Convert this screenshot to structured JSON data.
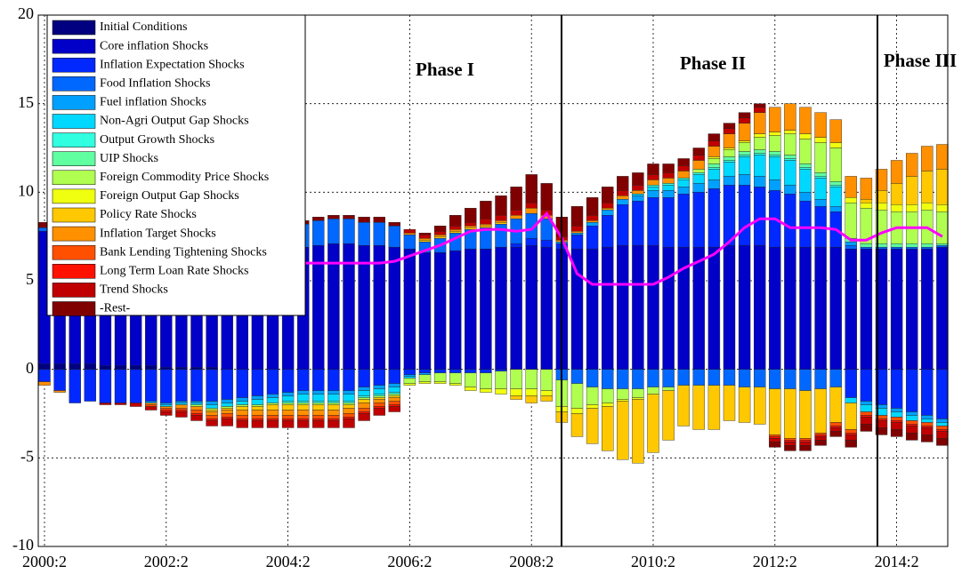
{
  "chart_data": {
    "type": "bar",
    "stacked": true,
    "categories": [
      "2000:2",
      null,
      null,
      null,
      null,
      null,
      null,
      null,
      "2002:2",
      null,
      null,
      null,
      null,
      null,
      null,
      null,
      "2004:2",
      null,
      null,
      null,
      null,
      null,
      null,
      null,
      "2006:2",
      null,
      null,
      null,
      null,
      null,
      null,
      null,
      "2008:2",
      null,
      null,
      null,
      null,
      null,
      null,
      null,
      "2010:2",
      null,
      null,
      null,
      null,
      null,
      null,
      null,
      "2012:2",
      null,
      null,
      null,
      null,
      null,
      null,
      null,
      "2014:2",
      null,
      null,
      null
    ],
    "ylim": [
      -10,
      20
    ],
    "yticks": [
      -10,
      -5,
      0,
      5,
      10,
      15,
      20
    ],
    "grid": true,
    "legend": "upper left",
    "annotations": [
      "Phase I",
      "Phase II",
      "Phase III"
    ],
    "series": [
      {
        "name": "Initial Conditions",
        "color": "#000080",
        "values": [
          0.3,
          0.3,
          0.3,
          0.3,
          0.2,
          0.2,
          0.2,
          0.2,
          0.1,
          0.1,
          0.1,
          0.1,
          0,
          0,
          0,
          0,
          0,
          0,
          0,
          0,
          0,
          0,
          0,
          0,
          0,
          0,
          0,
          0,
          0,
          0,
          0,
          0,
          0,
          0,
          0,
          0,
          0,
          0,
          0,
          0,
          0,
          0,
          0,
          0,
          0,
          0,
          0,
          0,
          0,
          0,
          0,
          0,
          0,
          0,
          0,
          0,
          0,
          0,
          0,
          0
        ]
      },
      {
        "name": "Core inflation Shocks",
        "color": "#0000c8",
        "values": [
          7.5,
          7.3,
          7.2,
          7.0,
          6.9,
          6.8,
          6.8,
          6.7,
          6.7,
          6.7,
          6.8,
          6.9,
          7.0,
          7.0,
          7.1,
          7.0,
          6.9,
          6.9,
          7.0,
          7.1,
          7.1,
          7.0,
          7.0,
          6.9,
          6.8,
          6.6,
          6.6,
          6.7,
          6.8,
          6.8,
          6.9,
          6.9,
          7.0,
          6.9,
          6.8,
          6.8,
          6.8,
          6.9,
          7.0,
          7.0,
          7.0,
          6.9,
          6.9,
          6.9,
          6.9,
          7.0,
          7.0,
          7.0,
          6.9,
          6.9,
          6.9,
          6.9,
          6.9,
          6.8,
          6.8,
          6.8,
          6.8,
          6.8,
          6.8,
          6.9
        ]
      },
      {
        "name": "Inflation Expectation Shocks",
        "color": "#0028ff",
        "values": [
          -0.7,
          -1.2,
          -1.9,
          -1.8,
          -1.9,
          -1.9,
          -1.9,
          -1.8,
          -1.9,
          -1.8,
          -1.8,
          -1.8,
          -1.7,
          -1.6,
          -1.5,
          -1.4,
          -1.3,
          -1.2,
          -1.2,
          -1.2,
          -1.2,
          -1.0,
          -0.9,
          -0.8,
          -0.3,
          -0.2,
          -0.2,
          -0.2,
          -0.2,
          -0.2,
          -0.1,
          0.2,
          0.4,
          0.4,
          0.3,
          0.8,
          1.3,
          1.8,
          2.3,
          2.5,
          2.7,
          2.8,
          3.0,
          3.1,
          3.3,
          3.4,
          3.4,
          3.3,
          3.2,
          3.0,
          2.6,
          2.3,
          2.0,
          -1.6,
          -1.8,
          -2.0,
          -2.2,
          -2.4,
          -2.6,
          -2.8
        ]
      },
      {
        "name": "Food Inflation Shocks",
        "color": "#0068ff",
        "values": [
          0.2,
          0.3,
          0.3,
          0.3,
          0.3,
          0.3,
          0.4,
          0.4,
          0.5,
          0.6,
          0.7,
          0.8,
          0.9,
          1.0,
          1.1,
          1.2,
          1.2,
          1.3,
          1.4,
          1.4,
          1.4,
          1.3,
          1.3,
          1.2,
          0.8,
          0.6,
          0.8,
          1.0,
          1.1,
          1.2,
          1.3,
          1.4,
          1.4,
          1.2,
          -0.6,
          -0.8,
          -1.0,
          -1.1,
          -1.1,
          -1.1,
          -1.0,
          -1.0,
          -0.9,
          -0.9,
          -0.9,
          -0.9,
          -1.0,
          -1.0,
          -1.1,
          -1.1,
          -1.2,
          -1.1,
          -1.0,
          0.2,
          0.1,
          0.1,
          0.1,
          0.1,
          0.1,
          0.1
        ]
      },
      {
        "name": "Fuel inflation Shocks",
        "color": "#00a0ff",
        "values": [
          0,
          0,
          0,
          0,
          0,
          0,
          0,
          -0.1,
          -0.1,
          -0.1,
          -0.1,
          -0.2,
          -0.2,
          -0.2,
          -0.2,
          -0.2,
          -0.2,
          -0.2,
          -0.2,
          -0.2,
          -0.2,
          -0.2,
          -0.2,
          -0.2,
          -0.1,
          -0.1,
          0,
          0,
          0,
          0,
          0,
          0,
          0,
          0,
          0.1,
          0.1,
          0.2,
          0.3,
          0.3,
          0.3,
          0.4,
          0.4,
          0.4,
          0.5,
          0.5,
          0.5,
          0.6,
          0.6,
          0.6,
          0.5,
          0.5,
          0.4,
          0.3,
          0.2,
          -0.2,
          -0.2,
          -0.2,
          -0.2,
          -0.2,
          -0.2
        ]
      },
      {
        "name": "Non-Agri Output Gap Shocks",
        "color": "#00d8ff",
        "values": [
          0,
          0,
          0,
          0,
          0,
          0,
          0,
          0,
          -0.1,
          -0.1,
          -0.1,
          -0.2,
          -0.2,
          -0.2,
          -0.3,
          -0.3,
          -0.3,
          -0.4,
          -0.4,
          -0.4,
          -0.4,
          -0.3,
          -0.3,
          -0.3,
          -0.1,
          0,
          0,
          0,
          0,
          0,
          0,
          0,
          0,
          0,
          0,
          0,
          0,
          0,
          0,
          0.1,
          0.2,
          0.3,
          0.4,
          0.5,
          0.6,
          0.8,
          1.0,
          1.2,
          1.3,
          1.4,
          1.3,
          1.2,
          1.1,
          -0.3,
          -0.4,
          -0.4,
          -0.3,
          -0.3,
          -0.2,
          -0.2
        ]
      },
      {
        "name": "Output Growth Shocks",
        "color": "#30ffe0",
        "values": [
          0,
          0,
          0,
          0,
          0,
          0,
          0,
          0,
          0,
          0,
          0,
          0,
          0,
          0,
          0,
          0,
          -0.1,
          -0.1,
          -0.1,
          -0.1,
          -0.1,
          -0.1,
          -0.1,
          -0.1,
          0,
          0,
          0,
          0,
          0,
          0,
          0,
          0,
          0,
          0,
          0,
          0,
          0,
          0,
          0,
          0,
          0.1,
          0.1,
          0.1,
          0.1,
          0.1,
          0.1,
          0.1,
          0.1,
          0.1,
          0.1,
          0.1,
          0.1,
          0.1,
          0,
          0,
          0,
          0,
          0,
          0,
          0
        ]
      },
      {
        "name": "UIP Shocks",
        "color": "#60ffa0",
        "values": [
          0,
          0,
          0,
          0,
          0,
          0,
          0,
          0,
          0,
          0,
          0,
          0,
          0,
          0,
          0,
          0,
          0,
          0,
          0,
          0,
          0,
          0,
          0,
          0,
          0,
          0,
          0,
          0,
          0,
          0,
          0,
          0,
          0,
          0,
          0,
          0,
          0,
          0,
          0,
          0,
          0,
          0,
          0,
          0,
          0.2,
          0.2,
          0.2,
          0.2,
          0.2,
          0.2,
          0.2,
          0.2,
          0.2,
          0.2,
          0.2,
          0.2,
          0.2,
          0.2,
          0.2,
          0.1
        ]
      },
      {
        "name": "Foreign Commodity Price Shocks",
        "color": "#b0ff50",
        "values": [
          0,
          0,
          0,
          0,
          0,
          0,
          0,
          0,
          0,
          0,
          -0.1,
          -0.1,
          -0.1,
          -0.1,
          -0.1,
          -0.1,
          -0.1,
          -0.1,
          -0.1,
          -0.1,
          -0.1,
          -0.1,
          -0.1,
          -0.1,
          -0.3,
          -0.4,
          -0.5,
          -0.6,
          -0.8,
          -0.9,
          -1.0,
          -1.1,
          -1.1,
          -1.2,
          -1.5,
          -1.4,
          -1.0,
          -0.8,
          -0.6,
          -0.5,
          -0.4,
          -0.2,
          0,
          0.2,
          0.3,
          0.4,
          0.5,
          0.7,
          0.9,
          1.2,
          1.4,
          1.7,
          1.9,
          2.0,
          2.0,
          1.9,
          1.8,
          1.8,
          1.9,
          1.8
        ]
      },
      {
        "name": "Foreign Output Gap Shocks",
        "color": "#f0ff10",
        "values": [
          0,
          0,
          0,
          0,
          0,
          0,
          0,
          0,
          0,
          0,
          0,
          0,
          0,
          0,
          0,
          0,
          0,
          0,
          0,
          0,
          0,
          0,
          0,
          0,
          -0.1,
          -0.1,
          -0.1,
          -0.1,
          -0.2,
          -0.2,
          -0.3,
          -0.4,
          -0.4,
          -0.3,
          -0.3,
          -0.3,
          -0.2,
          -0.2,
          -0.1,
          -0.1,
          0,
          0,
          0,
          0,
          0.1,
          0.1,
          0.1,
          0.2,
          0.2,
          0.2,
          0.3,
          0.3,
          0.3,
          0.3,
          0.3,
          0.4,
          0.4,
          0.4,
          0.4,
          0.4
        ]
      },
      {
        "name": "Policy Rate Shocks",
        "color": "#ffc800",
        "values": [
          0,
          0,
          0,
          0,
          0,
          0,
          0,
          0,
          0,
          0,
          0,
          -0.1,
          -0.1,
          -0.2,
          -0.2,
          -0.3,
          -0.3,
          -0.3,
          -0.3,
          -0.3,
          -0.2,
          -0.2,
          -0.1,
          -0.1,
          0,
          0.1,
          0.1,
          0.1,
          0.1,
          0.1,
          0.1,
          -0.2,
          -0.4,
          -0.3,
          -0.6,
          -1.3,
          -2.0,
          -2.5,
          -3.3,
          -3.6,
          -3.3,
          -2.8,
          -2.3,
          -2.5,
          -2.5,
          -2.0,
          -2.0,
          -2.1,
          -2.6,
          -2.8,
          -2.7,
          -2.5,
          -2.0,
          -1.5,
          0.2,
          0.7,
          1.2,
          1.6,
          1.8,
          2.0
        ]
      },
      {
        "name": "Inflation Target Shocks",
        "color": "#ff9000",
        "values": [
          -0.2,
          -0.1,
          0,
          0,
          0,
          0,
          0,
          -0.1,
          -0.1,
          -0.2,
          -0.2,
          -0.2,
          -0.2,
          -0.3,
          -0.3,
          -0.3,
          -0.3,
          -0.3,
          -0.3,
          -0.3,
          -0.3,
          -0.3,
          -0.2,
          -0.2,
          0.1,
          0.1,
          0.1,
          0.1,
          0.1,
          0.1,
          0.1,
          0.2,
          0.3,
          0.2,
          0.1,
          0.1,
          0.1,
          0.1,
          0.2,
          0.2,
          0.3,
          0.3,
          0.4,
          0.5,
          0.6,
          0.8,
          1.0,
          1.2,
          1.4,
          1.5,
          1.5,
          1.4,
          1.3,
          1.2,
          1.2,
          1.2,
          1.3,
          1.3,
          1.4,
          1.4
        ]
      },
      {
        "name": "Bank Lending Tightening Shocks",
        "color": "#ff5000",
        "values": [
          0,
          0,
          0,
          0,
          0,
          0,
          0,
          -0.1,
          -0.1,
          -0.1,
          -0.2,
          -0.2,
          -0.2,
          -0.2,
          -0.2,
          -0.2,
          -0.2,
          -0.2,
          -0.2,
          -0.2,
          -0.2,
          -0.2,
          -0.2,
          -0.2,
          0,
          0,
          0,
          0,
          0,
          0,
          0,
          0,
          0,
          0,
          0,
          0,
          0,
          0,
          0,
          0,
          0,
          0,
          0,
          0,
          0,
          0,
          0,
          0,
          -0.1,
          -0.1,
          -0.1,
          -0.1,
          -0.2,
          -0.2,
          -0.2,
          -0.2,
          -0.2,
          -0.2,
          -0.2,
          -0.2
        ]
      },
      {
        "name": "Long Term Loan Rate Shocks",
        "color": "#ff1000",
        "values": [
          0,
          0,
          0,
          0,
          0,
          0,
          0,
          0,
          -0.1,
          -0.1,
          -0.1,
          -0.1,
          -0.1,
          -0.1,
          -0.1,
          -0.1,
          -0.1,
          -0.1,
          -0.1,
          -0.1,
          -0.1,
          -0.1,
          -0.1,
          -0.1,
          0,
          0,
          0,
          0,
          0,
          0,
          0,
          0,
          0,
          0,
          0,
          0,
          0,
          0,
          0,
          0,
          0,
          0,
          0,
          0,
          0,
          0,
          0,
          0,
          -0.1,
          -0.1,
          -0.1,
          -0.1,
          -0.1,
          -0.1,
          -0.1,
          -0.1,
          -0.1,
          -0.1,
          -0.1,
          -0.1
        ]
      },
      {
        "name": "Trend Shocks",
        "color": "#c00000",
        "values": [
          0,
          0,
          0,
          0,
          -0.1,
          -0.1,
          -0.2,
          -0.2,
          -0.2,
          -0.3,
          -0.3,
          -0.3,
          -0.4,
          -0.4,
          -0.4,
          -0.4,
          -0.4,
          -0.4,
          -0.4,
          -0.4,
          -0.5,
          -0.4,
          -0.4,
          -0.3,
          0.2,
          0.2,
          0.2,
          0.2,
          0.2,
          0.3,
          0.3,
          0.3,
          0.3,
          0.3,
          0.2,
          0.3,
          0.3,
          0.3,
          0.3,
          0.3,
          0.3,
          0.3,
          0.3,
          0.3,
          0.3,
          0.3,
          0.3,
          0.3,
          -0.2,
          -0.2,
          -0.2,
          -0.2,
          -0.2,
          -0.3,
          -0.4,
          -0.4,
          -0.4,
          -0.4,
          -0.4,
          -0.4
        ]
      },
      {
        "name": "-Rest-",
        "color": "#800000",
        "values": [
          0.3,
          0.4,
          0.4,
          0.4,
          0.5,
          0.5,
          0.5,
          0.6,
          0.6,
          0.6,
          0.6,
          0.6,
          0.6,
          0.6,
          0.5,
          0.5,
          0.5,
          0.2,
          0.2,
          0.2,
          0.2,
          0.3,
          0.3,
          0.2,
          0,
          0.1,
          0.3,
          0.6,
          0.8,
          1.0,
          1.1,
          1.3,
          1.6,
          1.5,
          1.1,
          1.1,
          1.0,
          0.9,
          0.8,
          0.7,
          0.6,
          0.5,
          0.4,
          0.4,
          0.4,
          0.3,
          0.3,
          0.2,
          -0.3,
          -0.3,
          -0.3,
          -0.3,
          -0.3,
          -0.4,
          -0.4,
          -0.4,
          -0.4,
          -0.4,
          -0.4,
          -0.4
        ]
      }
    ],
    "line": {
      "color": "#ff00ff",
      "values": [
        null,
        null,
        null,
        null,
        null,
        null,
        null,
        null,
        null,
        null,
        null,
        null,
        null,
        null,
        null,
        null,
        null,
        6.0,
        6.0,
        6.0,
        6.0,
        6.0,
        6.0,
        6.1,
        6.4,
        6.7,
        7.0,
        7.4,
        7.8,
        7.9,
        7.9,
        7.8,
        7.9,
        8.8,
        7.4,
        5.4,
        4.8,
        4.8,
        4.8,
        4.8,
        4.8,
        5.2,
        5.7,
        6.1,
        6.5,
        7.2,
        8.0,
        8.5,
        8.5,
        8.0,
        8.0,
        8.0,
        7.9,
        7.3,
        7.3,
        7.7,
        8.0,
        8.0,
        8.0,
        7.5
      ]
    }
  }
}
